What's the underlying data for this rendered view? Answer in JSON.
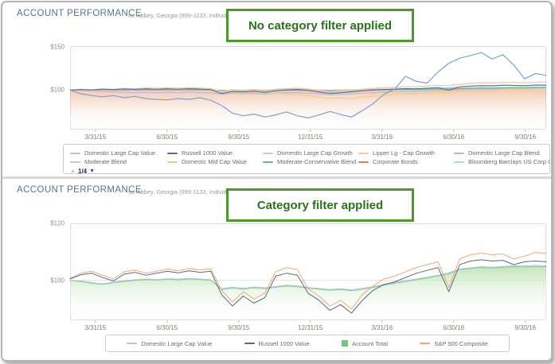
{
  "panels": [
    {
      "title": "ACCOUNT PERFORMANCE",
      "subtitle": "for Abbey, Georgia (999-1133, Individual)",
      "banner": "No category filter applied",
      "legend_page": "1/4"
    },
    {
      "title": "ACCOUNT PERFORMANCE",
      "subtitle": "for Abbey, Georgia (999-1133, Individual)",
      "banner": "Category filter applied"
    }
  ],
  "icons": {
    "up_arrow": "▲",
    "down_arrow": "▼"
  },
  "colors": {
    "banner_border": "#4b9929",
    "banner_text": "#2c711c",
    "title_text": "#50749a",
    "axis_label": "#8a7a6d",
    "y_label": "#8e8e8e",
    "gridline": "#e0e0e0",
    "plot_border": "#dedede"
  },
  "chart_data": [
    {
      "type": "line",
      "title": "Account performance - no category filter",
      "ylim": [
        54,
        151
      ],
      "y_ticks": [
        {
          "v": 150,
          "label": "$150",
          "grid": false
        },
        {
          "v": 100,
          "label": "$100",
          "grid": false
        }
      ],
      "x_ticks": [
        {
          "f": 0.053,
          "label": "3/31/15"
        },
        {
          "f": 0.2035,
          "label": "6/30/15"
        },
        {
          "f": 0.354,
          "label": "9/30/15"
        },
        {
          "f": 0.5045,
          "label": "12/31/15"
        },
        {
          "f": 0.655,
          "label": "3/31/16"
        },
        {
          "f": 0.8055,
          "label": "6/30/16"
        },
        {
          "f": 0.956,
          "label": "9/30/16"
        }
      ],
      "legend": {
        "columns": 5,
        "items": [
          {
            "label": "Domestic Large Cap Value",
            "color": "#a8c7e0",
            "marker": "line"
          },
          {
            "label": "Russell 1000 Value",
            "color": "#5a6b7e",
            "marker": "line"
          },
          {
            "label": "Domestic Large Cap Growth",
            "color": "#b5dcaa",
            "marker": "line"
          },
          {
            "label": "Lipper Lg - Cap Growth",
            "color": "#f6c9a0",
            "marker": "line"
          },
          {
            "label": "Domestic Large Cap Blend",
            "color": "#b9b4dd",
            "marker": "line"
          },
          {
            "label": "Moderate Blend",
            "color": "#c9c9c9",
            "marker": "line"
          },
          {
            "label": "Domestic Mid Cap Value",
            "color": "#e6d27e",
            "marker": "line"
          },
          {
            "label": "Moderate-Conservative Blend",
            "color": "#63b2ad",
            "marker": "line"
          },
          {
            "label": "Corporate Bonds",
            "color": "#e08060",
            "marker": "line"
          },
          {
            "label": "Bloomberg Barclays US Corp Invest...",
            "color": "#aadbd8",
            "marker": "line"
          }
        ]
      },
      "series": [
        {
          "name": "Corporate Bonds",
          "color": "#dd8259",
          "kind": "area",
          "fill_color": "#e89a6b",
          "fill_opacity": 0.6,
          "values": [
            100,
            100.2,
            100.1,
            100.3,
            100.2,
            100.4,
            100.2,
            100.4,
            100.3,
            100.5,
            100.3,
            100.5,
            100.4,
            100.2,
            99.6,
            100,
            99.8,
            100.1,
            99.9,
            100.2,
            100.4,
            100.5,
            100.2,
            100,
            99.8,
            100,
            100.2,
            100.4,
            100.7,
            100.9,
            101.1,
            101.4,
            101.3,
            101.6,
            101.9,
            101.8,
            102.2,
            102.5,
            102.8,
            102.7,
            103,
            103.1,
            103,
            103.2,
            103.1
          ]
        },
        {
          "name": "Domestic Large Cap Blend",
          "color": "#b9b4dd",
          "kind": "line",
          "values": [
            100,
            99.5,
            98.8,
            98.2,
            97.6,
            97.2,
            96.8,
            97.2,
            96.8,
            97.3,
            96.9,
            97.4,
            97,
            96.6,
            95,
            96,
            95.5,
            96,
            95.2,
            96.2,
            96.8,
            97,
            96.2,
            95.5,
            94.5,
            95,
            95.5,
            96.2,
            96.8,
            97.5,
            98,
            98.6,
            98.4,
            99,
            99.5,
            99.3,
            100.2,
            100.8,
            101.4,
            101.2,
            101.8,
            102.2,
            102,
            102.6,
            102.4
          ]
        },
        {
          "name": "Moderate Blend",
          "color": "#c9c9c9",
          "kind": "line",
          "values": [
            100,
            99.8,
            99.5,
            99.7,
            99.4,
            99.7,
            99.5,
            99.8,
            99.6,
            99.9,
            99.7,
            100,
            99.8,
            99.5,
            98,
            98.8,
            98.5,
            98.8,
            98.4,
            99,
            99.4,
            99.6,
            99,
            98.4,
            97.6,
            98,
            98.5,
            99,
            99.5,
            99.9,
            100.2,
            100.6,
            100.4,
            100.9,
            101.3,
            101.1,
            101.8,
            102.3,
            102.7,
            102.5,
            102.9,
            103.1,
            103,
            103.3,
            103.2
          ]
        },
        {
          "name": "Domestic Mid Cap Value",
          "color": "#e6d27e",
          "kind": "line",
          "values": [
            100,
            100.3,
            99.8,
            100.4,
            100,
            100.5,
            100.1,
            100.6,
            100.2,
            100.5,
            100.1,
            100.6,
            100.2,
            99.6,
            95.8,
            97.8,
            97.2,
            97.8,
            96.5,
            96.2,
            95.5,
            95,
            93.5,
            91.5,
            90,
            90.8,
            90,
            91.5,
            92.8,
            94,
            95,
            96,
            95.6,
            96.5,
            97.2,
            97,
            98.2,
            99,
            99.6,
            99.4,
            100.2,
            100.8,
            100.6,
            101.4,
            101.8
          ]
        },
        {
          "name": "Bloomberg Barclays US Corp Invest...",
          "color": "#aadbd8",
          "kind": "line",
          "values": [
            100,
            100.2,
            100,
            100.3,
            100.1,
            100.3,
            100.2,
            100.4,
            100.2,
            100.4,
            100.3,
            100.5,
            100.3,
            100.1,
            99.3,
            99.8,
            99.6,
            99.9,
            99.7,
            100,
            100.2,
            100.3,
            100,
            99.7,
            99.4,
            99.6,
            99.9,
            100.1,
            100.4,
            100.6,
            100.8,
            101.1,
            101,
            101.3,
            101.6,
            101.4,
            101.9,
            102.3,
            102.6,
            102.4,
            102.8,
            103,
            102.9,
            103.2,
            103
          ]
        },
        {
          "name": "Moderate-Conservative Blend",
          "color": "#63b2ad",
          "kind": "line",
          "values": [
            100,
            100.1,
            99.9,
            100.2,
            100,
            100.2,
            100.1,
            100.3,
            100.1,
            100.3,
            100.2,
            100.4,
            100.2,
            100,
            99,
            99.5,
            99.3,
            99.5,
            99.2,
            99.6,
            99.8,
            100,
            99.6,
            99.2,
            98.8,
            99,
            99.3,
            99.6,
            99.9,
            100.2,
            100.4,
            100.7,
            100.6,
            100.9,
            101.2,
            101,
            101.5,
            101.9,
            102.2,
            102,
            102.4,
            102.6,
            102.5,
            102.8,
            102.7
          ]
        },
        {
          "name": "Domestic Large Cap Growth",
          "color": "#b5dcaa",
          "kind": "line",
          "values": [
            100,
            100.5,
            100,
            100.8,
            100.4,
            101.2,
            100.8,
            101.6,
            101.2,
            101.8,
            101.4,
            102.2,
            101.8,
            101.2,
            98,
            100,
            99.5,
            100.2,
            99,
            100.5,
            101.2,
            101.8,
            101,
            99.5,
            97.8,
            98.8,
            99.8,
            100.8,
            101.8,
            102.5,
            103,
            103.8,
            103.5,
            104.5,
            105.2,
            105,
            106.5,
            107.5,
            108.2,
            108,
            108.8,
            108.6,
            108.2,
            109,
            109.2
          ]
        },
        {
          "name": "Lipper Lg - Cap Growth",
          "color": "#f6c9a0",
          "kind": "line",
          "values": [
            100,
            101,
            100.5,
            101.5,
            101,
            102,
            101.5,
            102.5,
            102,
            102.5,
            102,
            102.8,
            102.3,
            101.8,
            98.5,
            100.5,
            100,
            100.8,
            99.5,
            101,
            101.8,
            102.3,
            101.3,
            99.8,
            98,
            99,
            100,
            101,
            102,
            102.8,
            103.3,
            104,
            103.8,
            104.8,
            105.5,
            105.2,
            106.8,
            107.8,
            108.5,
            108.2,
            109,
            108.8,
            108.4,
            109.2,
            109
          ]
        },
        {
          "name": "Domestic Large Cap Value",
          "color": "#a8c7e0",
          "kind": "line",
          "values": [
            100,
            100.4,
            99.8,
            100.6,
            100.2,
            100.9,
            100.4,
            101.1,
            100.6,
            101,
            100.5,
            101.2,
            100.8,
            100.2,
            97,
            99,
            98.5,
            99.2,
            98,
            99.5,
            100.2,
            100.8,
            100,
            98.5,
            96.8,
            97.5,
            98.5,
            99.5,
            100.3,
            100.8,
            101.2,
            101.8,
            101.5,
            102.2,
            102.8,
            102.5,
            103.5,
            104.2,
            104.8,
            104.5,
            105.2,
            105,
            104.6,
            105.2,
            105
          ]
        },
        {
          "name": "Russell 1000 Value",
          "color": "#5a6b7e",
          "kind": "line",
          "values": [
            100,
            100.6,
            100.1,
            100.9,
            100.4,
            101.2,
            100.7,
            101.4,
            100.9,
            101.3,
            100.8,
            101.5,
            101,
            100.4,
            95.8,
            98.2,
            97.6,
            98.4,
            97.2,
            99,
            100,
            100.6,
            99.5,
            97.5,
            95.8,
            96.8,
            97.8,
            99,
            100,
            100.6,
            101,
            101.6,
            101.3,
            102,
            102.6,
            99.5,
            103.8,
            104.6,
            105.2,
            104.9,
            105.6,
            105.4,
            105,
            105.8,
            105.6
          ]
        },
        {
          "name": "unlabeled-series",
          "color": "#7ba1d0",
          "kind": "line",
          "width": 1.2,
          "values": [
            100,
            95.5,
            93.5,
            92,
            93.5,
            91,
            92.5,
            90,
            89,
            88.5,
            90,
            89,
            91,
            88,
            82,
            73,
            70,
            72,
            68.5,
            71,
            74.5,
            70,
            67.5,
            71,
            75,
            71.5,
            68.5,
            76,
            84,
            95,
            101,
            116,
            110,
            108,
            121,
            131,
            137,
            140,
            143.5,
            136,
            141,
            129,
            113,
            119,
            117
          ]
        }
      ]
    },
    {
      "type": "line",
      "title": "Account performance - category filter applied",
      "ylim": [
        86,
        120
      ],
      "y_ticks": [
        {
          "v": 120,
          "label": "$120",
          "grid": false
        },
        {
          "v": 100,
          "label": "$100",
          "grid": true
        }
      ],
      "x_ticks": [
        {
          "f": 0.053,
          "label": "3/31/15"
        },
        {
          "f": 0.2035,
          "label": "6/30/15"
        },
        {
          "f": 0.354,
          "label": "9/30/15"
        },
        {
          "f": 0.5045,
          "label": "12/31/15"
        },
        {
          "f": 0.655,
          "label": "3/31/16"
        },
        {
          "f": 0.8055,
          "label": "6/30/16"
        },
        {
          "f": 0.956,
          "label": "9/30/16"
        }
      ],
      "legend": {
        "columns": 4,
        "items": [
          {
            "label": "Domestic Large Cap Value",
            "color": "#a8c7e0",
            "marker": "line"
          },
          {
            "label": "Russell 1000 Value",
            "color": "#5a6b7e",
            "marker": "line"
          },
          {
            "label": "Account Total",
            "color": "#77c575",
            "marker": "square"
          },
          {
            "label": "S&P 500 Composite",
            "color": "#f0a875",
            "marker": "line"
          }
        ]
      },
      "series": [
        {
          "name": "Account Total",
          "color": "#8cc987",
          "kind": "area",
          "fill_color": "#b9e0af",
          "fill_opacity": 0.85,
          "values": [
            100,
            99.6,
            99,
            98.6,
            99.2,
            99.6,
            100,
            100.3,
            100.1,
            100.4,
            100.2,
            100.5,
            100.3,
            100,
            96.8,
            97.3,
            96.9,
            97.4,
            97.1,
            97.6,
            98,
            97.8,
            97.2,
            96.9,
            96.5,
            96.8,
            96.4,
            96.9,
            97.5,
            98.3,
            99,
            99.6,
            100.2,
            100.8,
            101.5,
            102.3,
            103.8,
            104.2,
            104.5,
            104.3,
            104.6,
            104.8,
            104.7,
            104.9,
            104.8
          ]
        },
        {
          "name": "Domestic Large Cap Value",
          "color": "#a8c7e0",
          "kind": "line",
          "values": [
            100,
            99.8,
            99.2,
            98.8,
            99.4,
            99.9,
            100.2,
            100.5,
            100.3,
            100.6,
            100.4,
            100.7,
            100.5,
            100.2,
            97.1,
            97.6,
            97.2,
            97.7,
            97.4,
            97.9,
            98.3,
            98.1,
            97.5,
            97.2,
            96.8,
            97.1,
            96.7,
            97.2,
            97.8,
            98.6,
            99.3,
            99.9,
            100.5,
            101.1,
            101.8,
            102.6,
            104,
            104.4,
            104.8,
            104.6,
            104.9,
            105.1,
            105,
            105.3,
            105.1
          ]
        },
        {
          "name": "Russell 1000 Value",
          "color": "#5a6b7e",
          "kind": "line",
          "values": [
            100.5,
            102,
            102.5,
            101,
            99.8,
            102.2,
            102.8,
            101.8,
            102.5,
            103.2,
            102.6,
            103.4,
            102.8,
            103.2,
            95,
            91,
            94.5,
            92,
            94,
            101.5,
            102.5,
            101.8,
            95.5,
            93,
            89.5,
            91.5,
            88.5,
            93,
            96.5,
            98.5,
            99.5,
            101,
            102.5,
            103.5,
            104.5,
            96,
            105.5,
            106.8,
            107.2,
            106.8,
            107,
            105.5,
            106.5,
            106.8,
            106.5
          ]
        },
        {
          "name": "S&P 500 Composite",
          "color": "#f0a875",
          "kind": "line",
          "values": [
            100.8,
            102.5,
            103.2,
            101.8,
            100.5,
            103,
            103.6,
            102.5,
            103.2,
            104,
            103.4,
            104.2,
            103.6,
            104.1,
            96.5,
            92.5,
            96,
            93.5,
            95.5,
            103,
            104.5,
            103.8,
            97,
            94.5,
            91,
            93,
            90,
            95,
            98,
            100.5,
            101.5,
            103,
            104.5,
            105.5,
            106.5,
            97.5,
            107.5,
            109,
            109.5,
            109,
            109.3,
            107.5,
            108.5,
            109.8,
            109.5
          ]
        }
      ]
    }
  ]
}
